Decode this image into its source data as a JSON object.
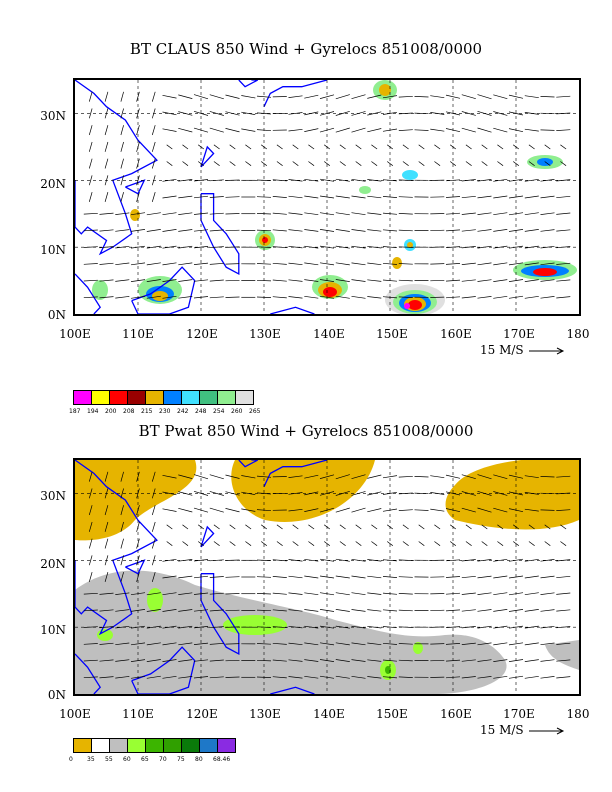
{
  "panels": [
    {
      "id": "top",
      "title": "BT CLAUS 850 Wind + Gyrelocs 851008/0000",
      "lon_labels": [
        "100E",
        "110E",
        "120E",
        "130E",
        "140E",
        "150E",
        "160E",
        "170E",
        "180"
      ],
      "lat_labels": [
        "0N",
        "10N",
        "20N",
        "30N"
      ],
      "scale_label": "15 M/S",
      "legend": {
        "colors": [
          "#ff00ff",
          "#ffff00",
          "#ff0000",
          "#990000",
          "#e6b400",
          "#0080ff",
          "#40e0ff",
          "#40c080",
          "#90ee90",
          "#e0e0e0"
        ],
        "labels": [
          "187",
          "194",
          "200",
          "208",
          "215",
          "230",
          "242",
          "248",
          "254",
          "260",
          "265"
        ]
      }
    },
    {
      "id": "bottom",
      "title": "BT Pwat 850 Wind + Gyrelocs 851008/0000",
      "lon_labels": [
        "100E",
        "110E",
        "120E",
        "130E",
        "140E",
        "150E",
        "160E",
        "170E",
        "180"
      ],
      "lat_labels": [
        "0N",
        "10N",
        "20N",
        "30N"
      ],
      "scale_label": "15 M/S",
      "legend": {
        "colors": [
          "#e6b400",
          "#ffffff",
          "#bfbfbf",
          "#99ff33",
          "#3cb500",
          "#30a000",
          "#0a7a0a",
          "#1e78c8",
          "#8a2be2"
        ],
        "labels": [
          "0",
          "35",
          "55",
          "60",
          "65",
          "70",
          "75",
          "80",
          "68.46"
        ]
      }
    }
  ],
  "map": {
    "lon_range": [
      100,
      180
    ],
    "lat_range": [
      0,
      35
    ],
    "colors": {
      "coast": "#0000ff",
      "grid": "#000000"
    }
  }
}
